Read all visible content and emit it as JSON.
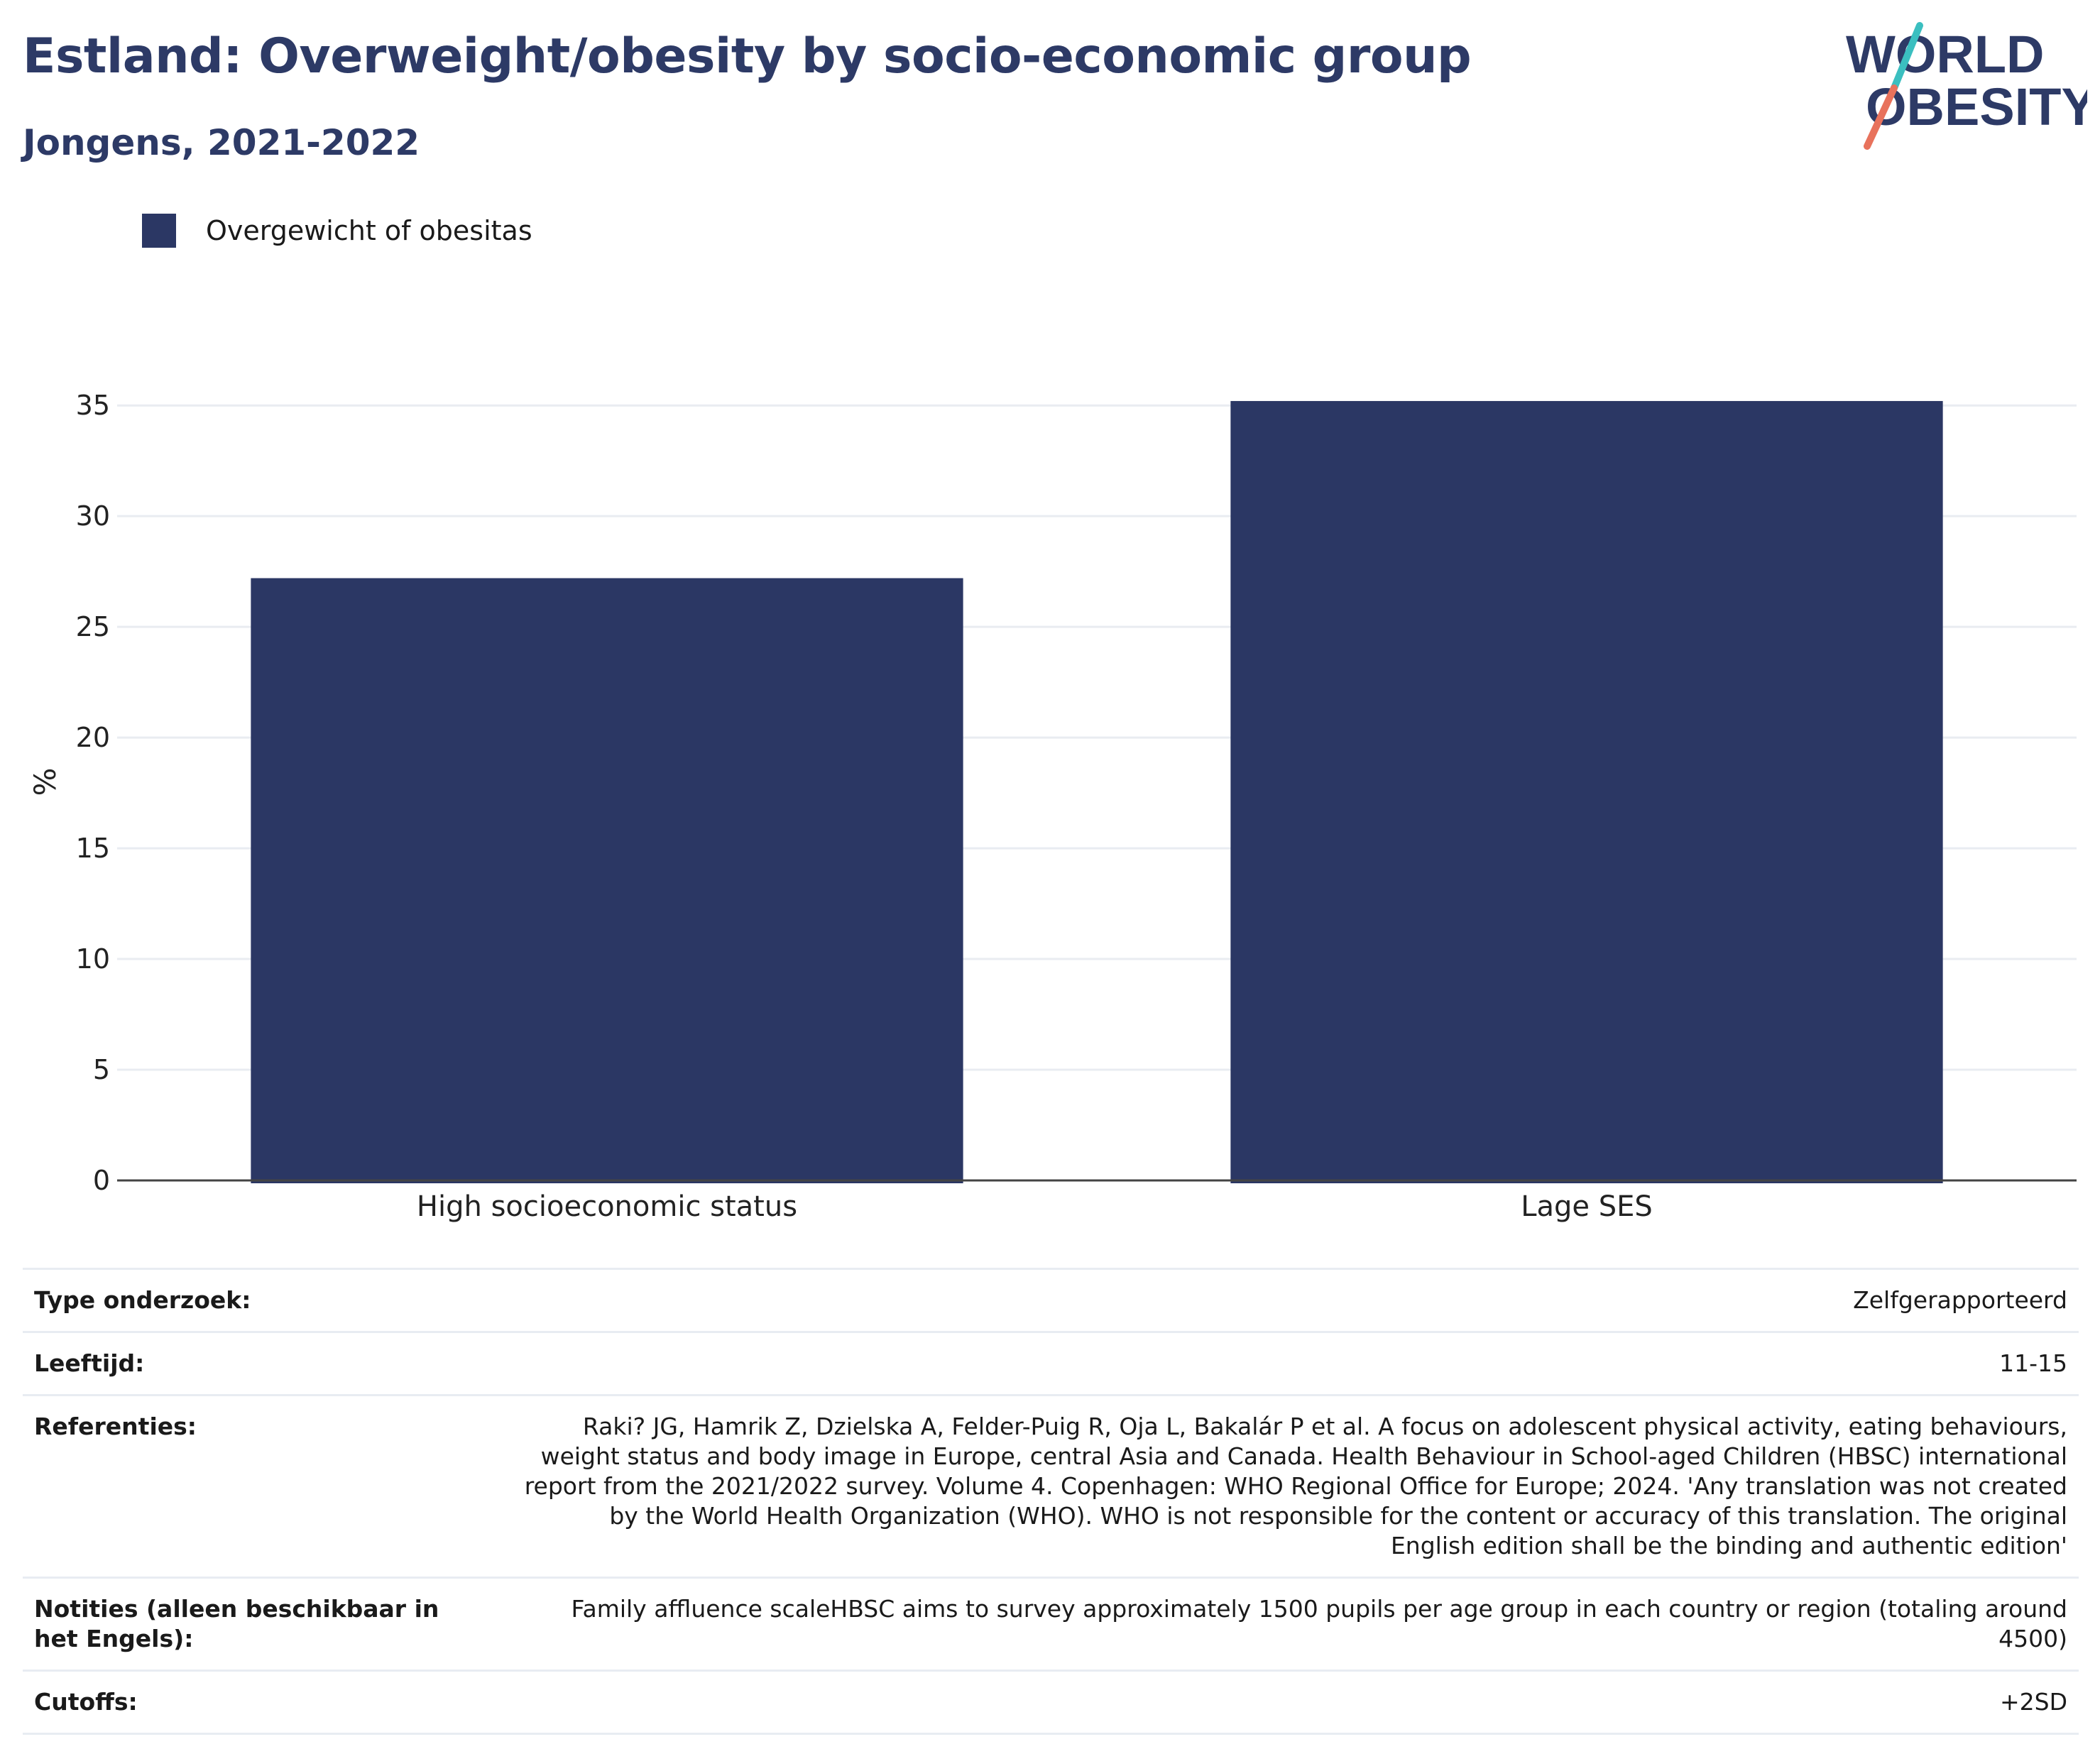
{
  "header": {
    "title": "Estland: Overweight/obesity by socio-economic group",
    "subtitle": "Jongens, 2021-2022"
  },
  "logo": {
    "line1": "WORLD",
    "line2": "OBESITY",
    "icon": "world-obesity-logo",
    "colors": {
      "text": "#2d3a66",
      "slash_top": "#3bbfc0",
      "slash_bottom": "#e8725c"
    }
  },
  "legend": {
    "label": "Overgewicht of obesitas",
    "color": "#2b3764"
  },
  "chart_data": {
    "type": "bar",
    "categories": [
      "High socioeconomic status",
      "Lage SES"
    ],
    "series": [
      {
        "name": "Overgewicht of obesitas",
        "values": [
          27.2,
          35.2
        ],
        "color": "#2b3764"
      }
    ],
    "ylabel": "%",
    "ylim": [
      0,
      36
    ],
    "yticks": [
      0,
      5,
      10,
      15,
      20,
      25,
      30,
      35
    ],
    "grid": true,
    "legend_position": "top-left"
  },
  "meta": {
    "rows": [
      {
        "key": "Type onderzoek:",
        "value": "Zelfgerapporteerd"
      },
      {
        "key": "Leeftijd:",
        "value": "11-15"
      },
      {
        "key": "Referenties:",
        "value": "Raki? JG, Hamrik Z, Dzielska A, Felder-Puig R, Oja L, Bakalár P et al. A focus on adolescent physical activity, eating behaviours, weight status and body image in Europe, central Asia and Canada. Health Behaviour in School-aged Children (HBSC) international report from the 2021/2022 survey. Volume 4. Copenhagen: WHO Regional Office for Europe; 2024. 'Any translation was not created by the World Health Organization (WHO). WHO is not responsible for the content or accuracy of this translation. The original English edition shall be the binding and authentic edition'"
      },
      {
        "key": "Notities (alleen beschikbaar in het Engels):",
        "value": "Family affluence scaleHBSC aims to survey approximately 1500 pupils per age group in each country or region (totaling around 4500)"
      },
      {
        "key": "Cutoffs:",
        "value": "+2SD"
      }
    ]
  }
}
